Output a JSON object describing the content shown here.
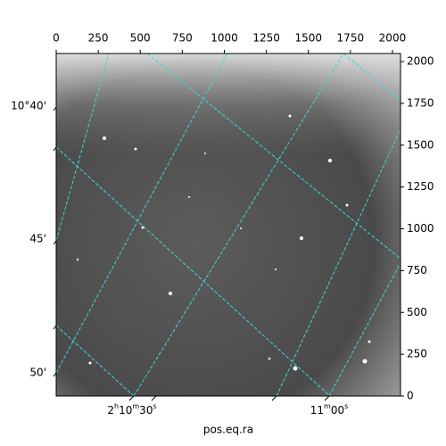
{
  "chart_data": {
    "type": "image",
    "xlabel": "pos.eq.ra",
    "xlim": [
      0,
      2048
    ],
    "xticks": [
      0,
      250,
      500,
      750,
      1000,
      1250,
      1500,
      1750,
      2000
    ],
    "ylim": [
      0,
      2048
    ],
    "yticks": [
      0,
      250,
      500,
      750,
      1000,
      1250,
      1500,
      1750,
      2000
    ],
    "ra_tick_labels": [
      "2h10m30s",
      "11m00s"
    ],
    "dec_tick_labels": [
      "10°40'",
      "45'",
      "50'"
    ]
  }
}
